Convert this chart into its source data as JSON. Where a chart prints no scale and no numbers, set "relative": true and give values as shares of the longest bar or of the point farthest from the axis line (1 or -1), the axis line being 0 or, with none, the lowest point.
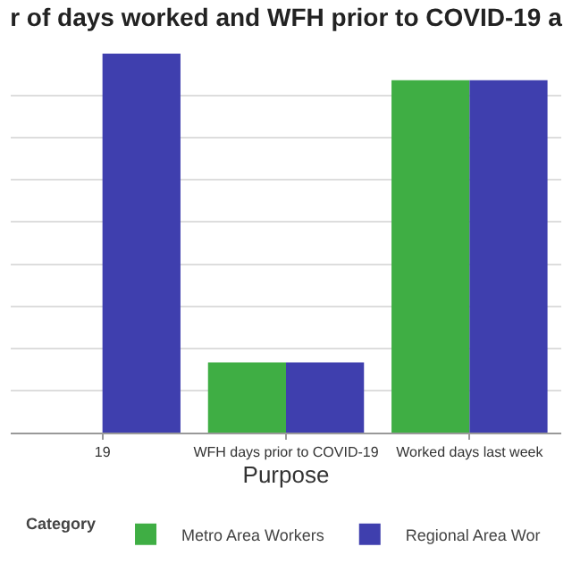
{
  "chart_data": {
    "type": "bar",
    "title": "r of days worked and WFH prior to COVID-19 a",
    "xlabel": "Purpose",
    "legend_title": "Category",
    "relative": true,
    "grid": "y",
    "legend": "bottom",
    "categories": [
      "19",
      "WFH days prior to COVID-19",
      "Worked days last week"
    ],
    "series": [
      {
        "name": "Metro Area Workers",
        "color": "#3fae44",
        "values": [
          null,
          0.185,
          0.93
        ]
      },
      {
        "name": "Regional Area Wor",
        "color": "#3f3fae",
        "values": [
          1,
          0.185,
          0.93
        ]
      }
    ]
  }
}
